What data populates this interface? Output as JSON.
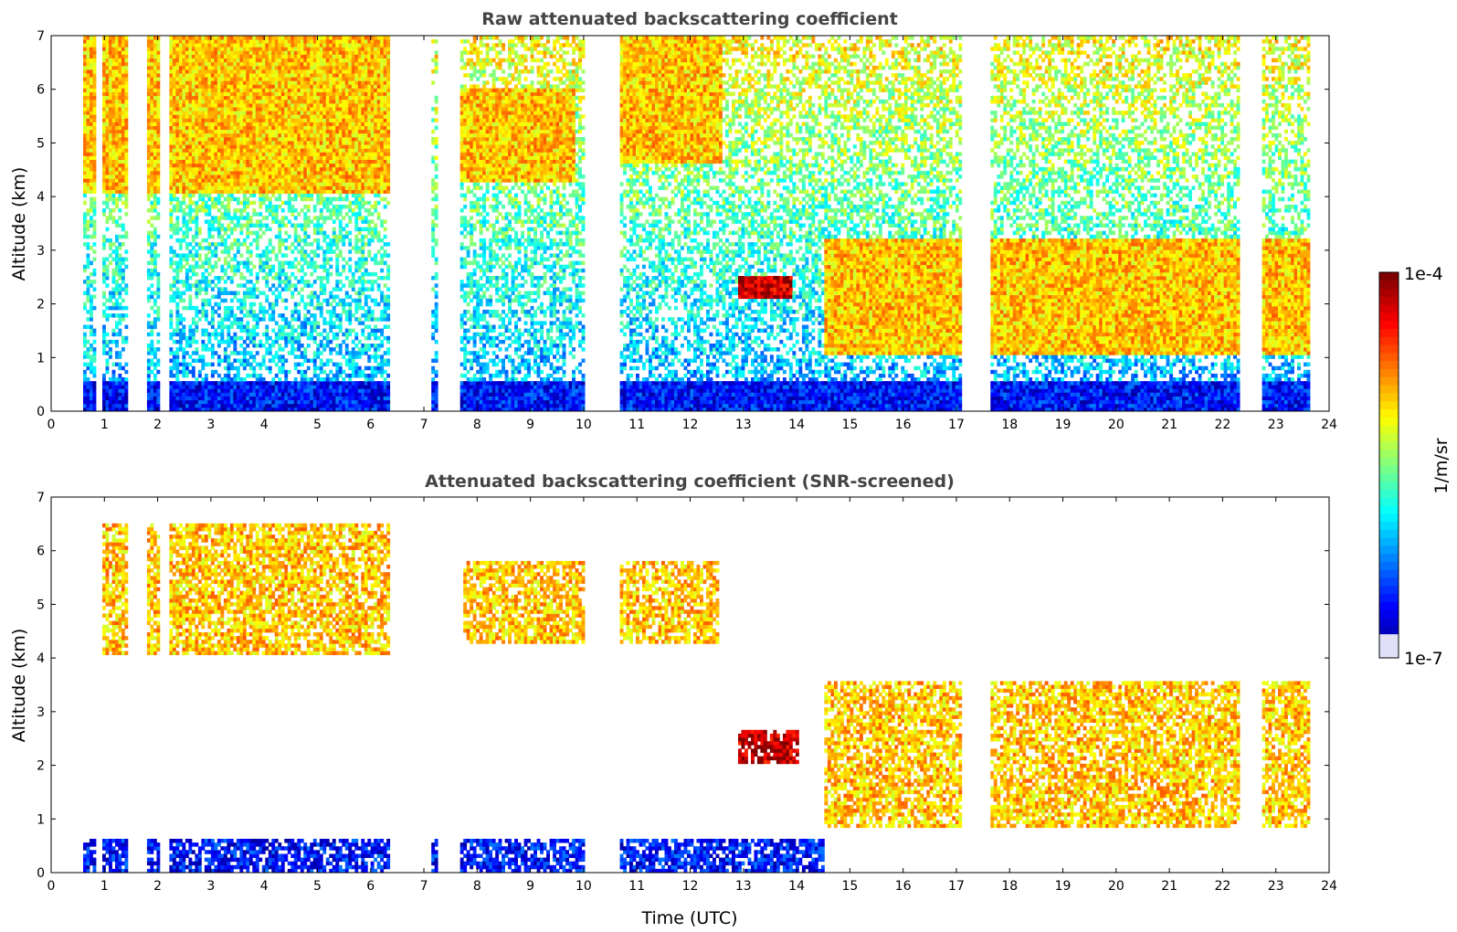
{
  "chart_data": [
    {
      "type": "heatmap",
      "title": "Raw attenuated backscattering coefficient",
      "xlabel": "",
      "ylabel": "Altitude (km)",
      "xlim": [
        0,
        24
      ],
      "ylim": [
        0,
        7
      ],
      "xticks": [
        "0",
        "1",
        "2",
        "3",
        "4",
        "5",
        "6",
        "7",
        "8",
        "9",
        "10",
        "11",
        "12",
        "13",
        "14",
        "15",
        "16",
        "17",
        "18",
        "19",
        "20",
        "21",
        "22",
        "23",
        "24"
      ],
      "yticks": [
        "0",
        "1",
        "2",
        "3",
        "4",
        "5",
        "6",
        "7"
      ],
      "data_gaps_utc": [
        [
          0.0,
          0.55
        ],
        [
          0.82,
          0.95
        ],
        [
          1.42,
          1.75
        ],
        [
          2.0,
          2.2
        ],
        [
          6.3,
          7.1
        ],
        [
          7.2,
          7.65
        ],
        [
          10.0,
          10.65
        ],
        [
          17.1,
          17.6
        ],
        [
          22.3,
          22.7
        ],
        [
          23.6,
          24.0
        ]
      ],
      "features": [
        {
          "name": "boundary layer",
          "x": [
            0.55,
            23.6
          ],
          "y": [
            0.0,
            0.5
          ],
          "level": "low"
        },
        {
          "name": "mid-level cloud",
          "x": [
            0.55,
            6.3
          ],
          "y": [
            4.0,
            7.0
          ],
          "level": "high"
        },
        {
          "name": "mid-level cloud",
          "x": [
            7.65,
            9.8
          ],
          "y": [
            4.2,
            6.0
          ],
          "level": "high"
        },
        {
          "name": "mid-level cloud",
          "x": [
            10.65,
            12.6
          ],
          "y": [
            4.6,
            7.0
          ],
          "level": "high"
        },
        {
          "name": "cloud layer",
          "x": [
            12.9,
            13.9
          ],
          "y": [
            2.1,
            2.5
          ],
          "level": "max"
        },
        {
          "name": "low cloud",
          "x": [
            14.5,
            23.6
          ],
          "y": [
            1.0,
            3.2
          ],
          "level": "high"
        }
      ]
    },
    {
      "type": "heatmap",
      "title": "Attenuated backscattering coefficient (SNR-screened)",
      "xlabel": "Time (UTC)",
      "ylabel": "Altitude (km)",
      "xlim": [
        0,
        24
      ],
      "ylim": [
        0,
        7
      ],
      "xticks": [
        "0",
        "1",
        "2",
        "3",
        "4",
        "5",
        "6",
        "7",
        "8",
        "9",
        "10",
        "11",
        "12",
        "13",
        "14",
        "15",
        "16",
        "17",
        "18",
        "19",
        "20",
        "21",
        "22",
        "23",
        "24"
      ],
      "yticks": [
        "0",
        "1",
        "2",
        "3",
        "4",
        "5",
        "6",
        "7"
      ],
      "features": [
        {
          "name": "boundary layer",
          "x": [
            0.55,
            14.5
          ],
          "y": [
            0.0,
            0.6
          ],
          "level": "low"
        },
        {
          "name": "mid-level cloud",
          "x": [
            0.8,
            6.3
          ],
          "y": [
            4.0,
            6.5
          ],
          "level": "high"
        },
        {
          "name": "mid-level cloud",
          "x": [
            7.7,
            12.5
          ],
          "y": [
            4.2,
            5.8
          ],
          "level": "high"
        },
        {
          "name": "cloud layer",
          "x": [
            12.9,
            14.0
          ],
          "y": [
            2.0,
            2.6
          ],
          "level": "max"
        },
        {
          "name": "low cloud",
          "x": [
            14.5,
            23.6
          ],
          "y": [
            0.8,
            3.5
          ],
          "level": "high"
        }
      ]
    }
  ],
  "colorbar": {
    "max_label": "1e-4",
    "min_label": "1e-7",
    "unit_label": "1/m/sr",
    "colormap": "jet",
    "colors": [
      "#000080",
      "#0000ff",
      "#0080ff",
      "#00ffff",
      "#80ff80",
      "#ffff00",
      "#ff8000",
      "#ff0000",
      "#800000"
    ],
    "low_end_color": "#e0e0f8"
  }
}
